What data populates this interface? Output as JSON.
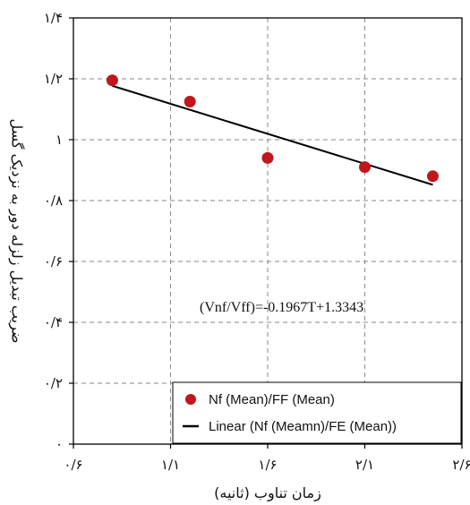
{
  "chart_data": {
    "type": "scatter",
    "xlabel": "زمان تناوب (ثانیه)",
    "ylabel": "ضریب تبدیل زلزله دور به نزدیک گسل",
    "xlim": [
      0.6,
      2.6
    ],
    "ylim": [
      0,
      1.4
    ],
    "xticks": [
      {
        "value": 0.6,
        "label": "۰/۶"
      },
      {
        "value": 1.1,
        "label": "۱/۱"
      },
      {
        "value": 1.6,
        "label": "۱/۶"
      },
      {
        "value": 2.1,
        "label": "۲/۱"
      },
      {
        "value": 2.6,
        "label": "۲/۶"
      }
    ],
    "yticks": [
      {
        "value": 0,
        "label": "۰"
      },
      {
        "value": 0.2,
        "label": "۰/۲"
      },
      {
        "value": 0.4,
        "label": "۰/۴"
      },
      {
        "value": 0.6,
        "label": "۰/۶"
      },
      {
        "value": 0.8,
        "label": "۰/۸"
      },
      {
        "value": 1.0,
        "label": "۱"
      },
      {
        "value": 1.2,
        "label": "۱/۲"
      },
      {
        "value": 1.4,
        "label": "۱/۴"
      }
    ],
    "grid": true,
    "legend_position": "bottom-right",
    "series": [
      {
        "name": "Nf (Mean)/FF (Mean)",
        "kind": "points",
        "color": "#c0161c",
        "x": [
          0.8,
          1.2,
          1.6,
          2.1,
          2.45
        ],
        "y": [
          1.195,
          1.125,
          0.94,
          0.91,
          0.88
        ]
      },
      {
        "name": "Linear (Nf (Meamn)/FE (Mean))",
        "kind": "line",
        "color": "#000000",
        "x": [
          0.8,
          2.45
        ],
        "y": [
          1.1769,
          0.8518
        ]
      }
    ],
    "annotation": {
      "text": "(Vnf/Vff)=-0.1967T+1.3343",
      "x": 1.25,
      "y": 0.435
    }
  }
}
